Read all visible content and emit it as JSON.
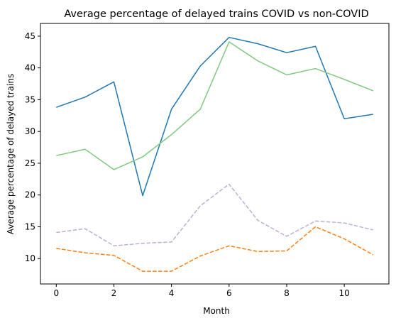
{
  "chart_data": {
    "type": "line",
    "title": "Average percentage of delayed trains COVID vs non-COVID",
    "xlabel": "Month",
    "ylabel": "Average percentage of delayed trains",
    "xlim": [
      -0.55,
      11.55
    ],
    "ylim": [
      6.0,
      47.0
    ],
    "xticks": [
      0,
      2,
      4,
      6,
      8,
      10
    ],
    "yticks": [
      10,
      15,
      20,
      25,
      30,
      35,
      40,
      45
    ],
    "grid": false,
    "legend": "none",
    "x": [
      0,
      1,
      2,
      3,
      4,
      5,
      6,
      7,
      8,
      9,
      10,
      11
    ],
    "series": [
      {
        "color": "#1f77b4",
        "dash": "solid",
        "values": [
          33.8,
          35.4,
          37.8,
          19.9,
          33.5,
          40.3,
          44.8,
          43.8,
          42.4,
          43.4,
          32.0,
          32.7
        ]
      },
      {
        "color": "#7fc97f",
        "dash": "solid",
        "values": [
          26.2,
          27.2,
          24.0,
          26.0,
          29.5,
          33.5,
          44.1,
          41.1,
          38.9,
          39.9,
          38.2,
          36.4
        ]
      },
      {
        "color": "#ff7f0e",
        "dash": "dashed",
        "values": [
          11.6,
          10.9,
          10.5,
          8.0,
          8.0,
          10.4,
          12.0,
          11.1,
          11.2,
          15.0,
          13.1,
          10.6
        ]
      },
      {
        "color": "#beaed4",
        "dash": "dashed",
        "values": [
          14.1,
          14.7,
          12.0,
          12.4,
          12.6,
          18.3,
          21.7,
          16.0,
          13.5,
          15.9,
          15.6,
          14.5
        ]
      }
    ]
  }
}
